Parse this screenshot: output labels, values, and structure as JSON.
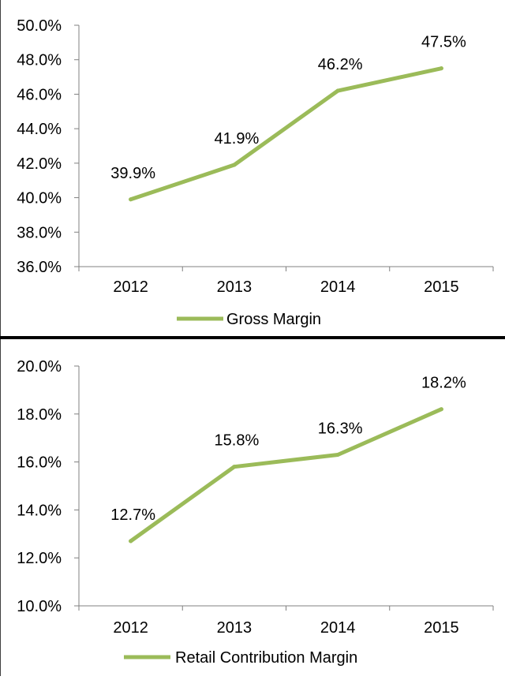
{
  "colors": {
    "line": "#9BBB59",
    "axis": "#808080",
    "text": "#000000",
    "divider": "#000000"
  },
  "chart_data": [
    {
      "type": "line",
      "categories": [
        "2012",
        "2013",
        "2014",
        "2015"
      ],
      "series": [
        {
          "name": "Gross Margin",
          "values": [
            39.9,
            41.9,
            46.2,
            47.5
          ],
          "labels": [
            "39.9%",
            "41.9%",
            "46.2%",
            "47.5%"
          ]
        }
      ],
      "ylim": [
        36,
        50
      ],
      "yticks": [
        36,
        38,
        40,
        42,
        44,
        46,
        48,
        50
      ],
      "ytick_labels": [
        "36.0%",
        "38.0%",
        "40.0%",
        "42.0%",
        "44.0%",
        "46.0%",
        "48.0%",
        "50.0%"
      ],
      "grid": false,
      "legend": "bottom"
    },
    {
      "type": "line",
      "categories": [
        "2012",
        "2013",
        "2014",
        "2015"
      ],
      "series": [
        {
          "name": "Retail Contribution Margin",
          "values": [
            12.7,
            15.8,
            16.3,
            18.2
          ],
          "labels": [
            "12.7%",
            "15.8%",
            "16.3%",
            "18.2%"
          ]
        }
      ],
      "ylim": [
        10,
        20
      ],
      "yticks": [
        10,
        12,
        14,
        16,
        18,
        20
      ],
      "ytick_labels": [
        "10.0%",
        "12.0%",
        "14.0%",
        "16.0%",
        "18.0%",
        "20.0%"
      ],
      "grid": false,
      "legend": "bottom"
    }
  ]
}
